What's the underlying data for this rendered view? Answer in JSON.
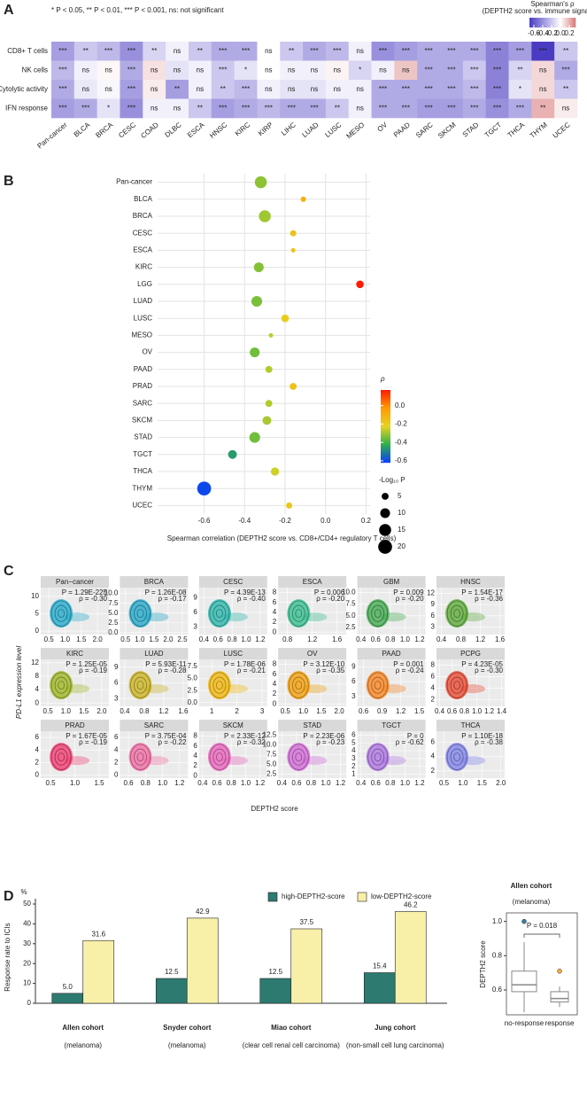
{
  "chart_data": [
    {
      "type": "heatmap",
      "panel_label": "A",
      "note": "* P < 0.05, ** P < 0.01, *** P < 0.001, ns: not significant",
      "legend_title": "Spearman's ρ",
      "legend_subtitle": "(DEPTH2 score vs. immune signature score)",
      "x": [
        "Pan-cancer",
        "BLCA",
        "BRCA",
        "CESC",
        "COAD",
        "DLBC",
        "ESCA",
        "HNSC",
        "KIRC",
        "KIRP",
        "LIHC",
        "LUAD",
        "LUSC",
        "MESO",
        "OV",
        "PAAD",
        "SARC",
        "SKCM",
        "STAD",
        "TGCT",
        "THCA",
        "THYM",
        "UCEC"
      ],
      "y": [
        "CD8+ T cells",
        "NK cells",
        "Cytolytic activity",
        "IFN response"
      ],
      "values": [
        [
          -0.35,
          -0.2,
          -0.25,
          -0.4,
          -0.15,
          -0.05,
          -0.2,
          -0.3,
          -0.3,
          0,
          -0.2,
          -0.3,
          -0.25,
          -0.05,
          -0.4,
          -0.35,
          -0.3,
          -0.3,
          -0.3,
          -0.45,
          -0.35,
          -0.7,
          -0.2
        ],
        [
          -0.25,
          -0.05,
          0.02,
          -0.3,
          0.08,
          -0.1,
          -0.05,
          -0.2,
          -0.1,
          0,
          -0.05,
          -0.05,
          0.03,
          -0.15,
          -0.05,
          0.15,
          -0.3,
          -0.3,
          -0.2,
          -0.45,
          -0.15,
          0.1,
          -0.3
        ],
        [
          -0.3,
          -0.08,
          -0.03,
          -0.35,
          0.05,
          -0.35,
          -0.05,
          -0.2,
          -0.25,
          -0.05,
          -0.1,
          -0.1,
          -0.05,
          -0.05,
          -0.3,
          -0.3,
          -0.3,
          -0.3,
          -0.25,
          -0.45,
          -0.1,
          0.1,
          -0.2
        ],
        [
          -0.35,
          -0.3,
          -0.1,
          -0.4,
          -0.05,
          -0.05,
          -0.2,
          -0.35,
          -0.3,
          -0.25,
          -0.3,
          -0.3,
          -0.2,
          -0.05,
          -0.3,
          -0.3,
          -0.35,
          -0.35,
          -0.3,
          -0.4,
          -0.3,
          0.2,
          0.05
        ]
      ],
      "significance": [
        [
          "***",
          "**",
          "***",
          "***",
          "**",
          "ns",
          "**",
          "***",
          "***",
          "ns",
          "**",
          "***",
          "***",
          "ns",
          "***",
          "***",
          "***",
          "***",
          "***",
          "***",
          "***",
          "***",
          "**"
        ],
        [
          "***",
          "ns",
          "ns",
          "***",
          "ns",
          "ns",
          "ns",
          "***",
          "*",
          "ns",
          "ns",
          "ns",
          "ns",
          "*",
          "ns",
          "ns",
          "***",
          "***",
          "***",
          "***",
          "**",
          "ns",
          "***"
        ],
        [
          "***",
          "ns",
          "ns",
          "***",
          "ns",
          "**",
          "ns",
          "**",
          "***",
          "ns",
          "ns",
          "ns",
          "ns",
          "ns",
          "***",
          "***",
          "***",
          "***",
          "***",
          "***",
          "*",
          "ns",
          "**"
        ],
        [
          "***",
          "***",
          "*",
          "***",
          "ns",
          "ns",
          "**",
          "***",
          "***",
          "***",
          "***",
          "***",
          "**",
          "ns",
          "***",
          "***",
          "***",
          "***",
          "***",
          "***",
          "***",
          "**",
          "ns"
        ]
      ],
      "clim": [
        -0.7,
        0.34
      ],
      "colors": {
        "low": "#4a3cc2",
        "mid": "#ffffff",
        "high": "#d97b7b"
      },
      "cticks": [
        -0.6,
        -0.4,
        -0.2,
        {
          "value": 0,
          "label": "0.0"
        },
        0.2
      ]
    },
    {
      "type": "bubble",
      "panel_label": "B",
      "categories": [
        "Pan-cancer",
        "BLCA",
        "BRCA",
        "CESC",
        "ESCA",
        "KIRC",
        "LGG",
        "LUAD",
        "LUSC",
        "MESO",
        "OV",
        "PAAD",
        "PRAD",
        "SARC",
        "SKCM",
        "STAD",
        "TGCT",
        "THCA",
        "THYM",
        "UCEC"
      ],
      "values": [
        -0.32,
        -0.11,
        -0.3,
        -0.16,
        -0.16,
        -0.33,
        0.17,
        -0.34,
        -0.2,
        -0.27,
        -0.35,
        -0.28,
        -0.16,
        -0.28,
        -0.29,
        -0.35,
        -0.46,
        -0.25,
        -0.6,
        -0.18
      ],
      "sizes": [
        15,
        3,
        15,
        4,
        2,
        10,
        6,
        12,
        6,
        2,
        10,
        5,
        5,
        5,
        8,
        12,
        8,
        7,
        20,
        4
      ],
      "xlabel": "Spearman correlation (DEPTH2 score vs. CD8+/CD4+ regulatory T cells)",
      "xlim": [
        -0.83,
        0.22
      ],
      "xticks": [
        -0.6,
        -0.4,
        -0.2,
        {
          "value": 0,
          "label": "0.0"
        },
        0.2
      ],
      "grid": true,
      "color_title": "ρ",
      "clim": [
        -0.62,
        0.17
      ],
      "colors": [
        "#0a3cff",
        "#2cb14a",
        "#e6d422",
        "#ff9a00",
        "#ff1a00"
      ],
      "cticks": [
        {
          "value": 0,
          "label": "0.0"
        },
        -0.2,
        -0.4,
        -0.6
      ],
      "size_title": "-Log₁₀ P",
      "size_ticks": [
        5,
        10,
        15,
        20
      ]
    },
    {
      "type": "scatter_grid",
      "panel_label": "C",
      "ylabel": "PD-L1 expression level",
      "xlabel": "DEPTH2 score",
      "panels": [
        {
          "title": "Pan−cancer",
          "color": "#1aa6c8",
          "xlim": [
            0.25,
            2.35
          ],
          "ylim": [
            -1,
            12.5
          ],
          "xticks": [
            0.5,
            {
              "value": 1,
              "label": "1.0"
            },
            1.5,
            {
              "value": 2,
              "label": "2.0"
            }
          ],
          "yticks": [
            0,
            5,
            10
          ],
          "annotations": [
            "P = 1.29E-225",
            "ρ = -0.30"
          ]
        },
        {
          "title": "BRCA",
          "color": "#1ba3c6",
          "xlim": [
            0.3,
            2.7
          ],
          "ylim": [
            -0.5,
            11.5
          ],
          "xticks": [
            0.5,
            {
              "value": 1,
              "label": "1.0"
            },
            1.5,
            {
              "value": 2,
              "label": "2.0"
            },
            2.5
          ],
          "yticks": [
            {
              "value": 0,
              "label": "0.0"
            },
            2.5,
            {
              "value": 5,
              "label": "5.0"
            },
            7.5,
            {
              "value": 10,
              "label": "10.0"
            }
          ],
          "annotations": [
            "P = 1.26E-08",
            "ρ = -0.17"
          ]
        },
        {
          "title": "CESC",
          "color": "#22b3a8",
          "xlim": [
            0.33,
            1.3
          ],
          "ylim": [
            1.5,
            11
          ],
          "xticks": [
            0.4,
            0.6,
            0.8,
            {
              "value": 1,
              "label": "1.0"
            },
            1.2
          ],
          "yticks": [
            3,
            6,
            9
          ],
          "annotations": [
            "P = 4.39E-13",
            "ρ = -0.40"
          ]
        },
        {
          "title": "ESCA",
          "color": "#2dbb8a",
          "xlim": [
            0.65,
            1.75
          ],
          "ylim": [
            -0.5,
            9
          ],
          "xticks": [
            0.8,
            1.2,
            1.6
          ],
          "yticks": [
            0,
            2,
            4,
            6,
            8
          ],
          "annotations": [
            "P = 0.006",
            "ρ = -0.20"
          ]
        },
        {
          "title": "GBM",
          "color": "#3aa648",
          "xlim": [
            0.35,
            1.28
          ],
          "ylim": [
            1,
            11
          ],
          "xticks": [
            0.4,
            0.6,
            0.8,
            {
              "value": 1,
              "label": "1.0"
            },
            1.2
          ],
          "yticks": [
            2.5,
            {
              "value": 5,
              "label": "5.0"
            },
            7.5,
            {
              "value": 10,
              "label": "10.0"
            }
          ],
          "annotations": [
            "P = 0.009",
            "ρ = -0.20"
          ]
        },
        {
          "title": "HNSC",
          "color": "#55a630",
          "xlim": [
            0.3,
            1.7
          ],
          "ylim": [
            1,
            13.5
          ],
          "xticks": [
            0.4,
            0.8,
            1.2,
            1.6
          ],
          "yticks": [
            3,
            6,
            9,
            12
          ],
          "annotations": [
            "P = 1.54E-17",
            "ρ = -0.36"
          ]
        },
        {
          "title": "KIRC",
          "color": "#9ab31a",
          "xlim": [
            0.3,
            2.2
          ],
          "ylim": [
            -1,
            13
          ],
          "xticks": [
            0.5,
            {
              "value": 1,
              "label": "1.0"
            },
            1.5,
            {
              "value": 2,
              "label": "2.0"
            }
          ],
          "yticks": [
            0,
            4,
            8,
            12
          ],
          "annotations": [
            "P = 1.25E-05",
            "ρ = -0.19"
          ]
        },
        {
          "title": "LUAD",
          "color": "#c8b01a",
          "xlim": [
            0.3,
            1.7
          ],
          "ylim": [
            1.5,
            10.5
          ],
          "xticks": [
            0.4,
            0.8,
            1.2,
            1.6
          ],
          "yticks": [
            3,
            6,
            9
          ],
          "annotations": [
            "P = 5.93E-11",
            "ρ = -0.28"
          ]
        },
        {
          "title": "LUSC",
          "color": "#f2b400",
          "xlim": [
            0.5,
            3.2
          ],
          "ylim": [
            -0.8,
            9
          ],
          "xticks": [
            1,
            2,
            3
          ],
          "yticks": [
            {
              "value": 0,
              "label": "0.0"
            },
            2.5,
            {
              "value": 5,
              "label": "5.0"
            },
            7.5
          ],
          "annotations": [
            "P = 1.78E-06",
            "ρ = -0.21"
          ]
        },
        {
          "title": "OV",
          "color": "#f29a00",
          "xlim": [
            0.3,
            2.2
          ],
          "ylim": [
            -0.5,
            9
          ],
          "xticks": [
            0.5,
            {
              "value": 1,
              "label": "1.0"
            },
            1.5,
            {
              "value": 2,
              "label": "2.0"
            }
          ],
          "yticks": [
            0,
            2,
            4,
            6,
            8
          ],
          "annotations": [
            "P = 3.12E-10",
            "ρ = -0.35"
          ]
        },
        {
          "title": "PAAD",
          "color": "#f57f17",
          "xlim": [
            0.5,
            1.6
          ],
          "ylim": [
            1,
            10.5
          ],
          "xticks": [
            0.6,
            0.9,
            1.2,
            1.5
          ],
          "yticks": [
            3,
            6,
            9
          ],
          "annotations": [
            "P = 0.001",
            "ρ = -0.24"
          ]
        },
        {
          "title": "PCPG",
          "color": "#e8412a",
          "xlim": [
            0.35,
            1.45
          ],
          "ylim": [
            0.8,
            9
          ],
          "xticks": [
            0.4,
            0.6,
            0.8,
            {
              "value": 1,
              "label": "1.0"
            },
            1.2,
            1.4
          ],
          "yticks": [
            2,
            4,
            6,
            8
          ],
          "annotations": [
            "P = 4.23E-05",
            "ρ = -0.30"
          ]
        },
        {
          "title": "PRAD",
          "color": "#f0336a",
          "xlim": [
            0.3,
            1.7
          ],
          "ylim": [
            -0.5,
            7
          ],
          "xticks": [
            0.5,
            {
              "value": 1,
              "label": "1.0"
            },
            1.5
          ],
          "yticks": [
            0,
            2,
            4,
            6
          ],
          "annotations": [
            "P = 1.67E-05",
            "ρ = -0.19"
          ]
        },
        {
          "title": "SARC",
          "color": "#f066a0",
          "xlim": [
            0.5,
            1.3
          ],
          "ylim": [
            -0.5,
            7
          ],
          "xticks": [
            0.6,
            0.8,
            {
              "value": 1,
              "label": "1.0"
            },
            1.2
          ],
          "yticks": [
            0,
            2,
            4,
            6
          ],
          "annotations": [
            "P = 3.75E-04",
            "ρ = -0.22"
          ]
        },
        {
          "title": "SKCM",
          "color": "#e85cb8",
          "xlim": [
            0.35,
            1.3
          ],
          "ylim": [
            -0.5,
            9
          ],
          "xticks": [
            0.4,
            0.6,
            0.8,
            {
              "value": 1,
              "label": "1.0"
            },
            1.2
          ],
          "yticks": [
            0,
            2,
            4,
            6,
            8
          ],
          "annotations": [
            "P = 2.33E-12",
            "ρ = -0.32"
          ]
        },
        {
          "title": "STAD",
          "color": "#d063d6",
          "xlim": [
            0.35,
            1.28
          ],
          "ylim": [
            1.5,
            13.5
          ],
          "xticks": [
            0.4,
            0.6,
            0.8,
            {
              "value": 1,
              "label": "1.0"
            },
            1.2
          ],
          "yticks": [
            2.5,
            {
              "value": 5,
              "label": "5.0"
            },
            7.5,
            {
              "value": 10,
              "label": "10.0"
            },
            12.5
          ],
          "annotations": [
            "P = 2.23E-06",
            "ρ = -0.23"
          ]
        },
        {
          "title": "TGCT",
          "color": "#a86ee0",
          "xlim": [
            0.35,
            1.28
          ],
          "ylim": [
            0.5,
            6.5
          ],
          "xticks": [
            0.4,
            0.6,
            0.8,
            {
              "value": 1,
              "label": "1.0"
            },
            1.2
          ],
          "yticks": [
            1,
            2,
            3,
            4,
            5,
            6
          ],
          "annotations": [
            "P = 0",
            "ρ = -0.62"
          ]
        },
        {
          "title": "THCA",
          "color": "#7b7ee8",
          "xlim": [
            0.3,
            2.1
          ],
          "ylim": [
            1,
            7.5
          ],
          "xticks": [
            0.5,
            {
              "value": 1,
              "label": "1.0"
            },
            1.5,
            {
              "value": 2,
              "label": "2.0"
            }
          ],
          "yticks": [
            2,
            4,
            6
          ],
          "annotations": [
            "P = 1.10E-18",
            "ρ = -0.38"
          ]
        }
      ]
    },
    {
      "type": "bar",
      "panel_label": "D",
      "categories": [
        "Allen cohort",
        "Snyder cohort",
        "Miao cohort",
        "Jung cohort"
      ],
      "category_notes": [
        "(melanoma)",
        "(melanoma)",
        "(clear cell renal cell carcinoma)",
        "(non-small cell lung carcinoma)"
      ],
      "series": [
        {
          "name": "high-DEPTH2-score",
          "color": "#2d7a70",
          "values": [
            5,
            12.5,
            12.5,
            15.4
          ],
          "value_labels": [
            "5.0",
            "12.5",
            "12.5",
            "15.4"
          ]
        },
        {
          "name": "low-DEPTH2-score",
          "color": "#f8f0a8",
          "values": [
            31.6,
            42.9,
            37.5,
            46.2
          ]
        }
      ],
      "ylabel": "Response rate to ICIs",
      "yunit": "%",
      "ylim": [
        0,
        50
      ],
      "yticks": [
        0,
        10,
        20,
        30,
        40,
        50
      ]
    },
    {
      "type": "box",
      "title": "Allen cohort",
      "subtitle": "(melanoma)",
      "categories": [
        "no-response",
        "response"
      ],
      "ylabel": "DEPTH2 score",
      "annotation": "P = 0.018",
      "ylim": [
        0.455,
        1.05
      ],
      "yticks": [
        0.6,
        0.8,
        {
          "value": 1,
          "label": "1.0"
        }
      ],
      "boxes": [
        {
          "min": 0.47,
          "q1": 0.59,
          "median": 0.63,
          "q3": 0.71,
          "max": 0.88
        },
        {
          "min": 0.5,
          "q1": 0.53,
          "median": 0.55,
          "q3": 0.59,
          "max": 0.62
        }
      ],
      "outliers": [
        [
          1.0
        ],
        [
          0.71
        ]
      ],
      "colors": [
        "#2f7fa8",
        "#f0b040"
      ]
    }
  ]
}
